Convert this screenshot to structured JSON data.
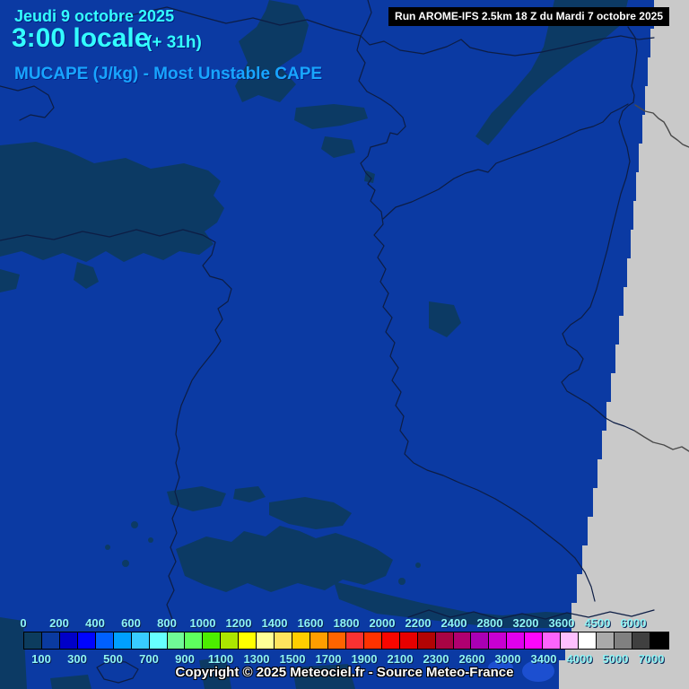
{
  "header": {
    "date": "Jeudi 9 octobre 2025",
    "time": "3:00 locale",
    "offset": "(+ 31h)",
    "parameter": "MUCAPE (J/kg) - Most Unstable CAPE",
    "run_info": "Run AROME-IFS 2.5km 18 Z du Mardi 7 octobre 2025"
  },
  "footer": {
    "copyright": "Copyright © 2025 Meteociel.fr - Source Meteo-France"
  },
  "legend": {
    "unit": "J/kg",
    "boundary_labels": [
      "0",
      "100",
      "200",
      "300",
      "400",
      "500",
      "600",
      "700",
      "800",
      "900",
      "1000",
      "1100",
      "1200",
      "1300",
      "1400",
      "1500",
      "1600",
      "1700",
      "1800",
      "1900",
      "2000",
      "2100",
      "2200",
      "2300",
      "2400",
      "2600",
      "2800",
      "3000",
      "3200",
      "3400",
      "3600",
      "4000",
      "4500",
      "5000",
      "6000",
      "7000"
    ],
    "cell_colors": [
      "#0c3c5e",
      "#0a3aa0",
      "#0000c8",
      "#0004ff",
      "#0060ff",
      "#00a0ff",
      "#38ccff",
      "#66ffff",
      "#70fa96",
      "#5eff5e",
      "#4cee00",
      "#ace600",
      "#ffff00",
      "#ffff96",
      "#ffe45e",
      "#ffce00",
      "#ff9e00",
      "#ff6400",
      "#fa3232",
      "#ff3200",
      "#f80600",
      "#e60000",
      "#b20404",
      "#a80444",
      "#b00070",
      "#aa00b4",
      "#c800d2",
      "#e000ee",
      "#fc06fc",
      "#fc64fc",
      "#fec0fe",
      "#ffffff",
      "#aaaaaa",
      "#808080",
      "#404040",
      "#000000"
    ]
  },
  "colors": {
    "map_background": "#0b3aa3",
    "low_cape_patch": "#0c3a64",
    "nodata_gray": "#c9c9c9",
    "border_line": "#0d1d44",
    "border_line_on_gray": "#4a4a4a",
    "title_cyan": "#33ffff",
    "parameter_blue": "#18a5ff",
    "tick_label_cyan": "#8ff5f5",
    "run_box_background": "#000000",
    "run_box_text": "#ffffff",
    "copyright_text": "#ffffff",
    "bright_blue_blob": "#1c4fd0"
  }
}
